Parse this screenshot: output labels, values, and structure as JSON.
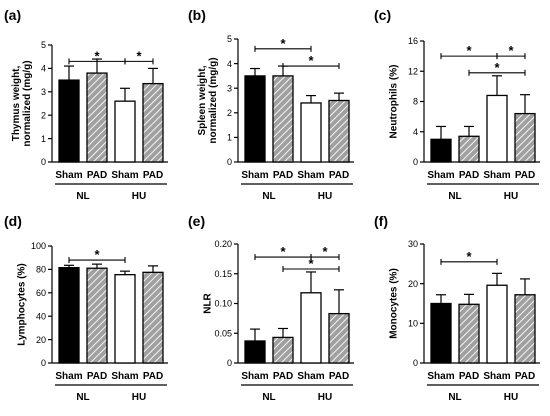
{
  "colors": {
    "ink": "#000000",
    "open": "#ffffff",
    "hatch": "#a0a0a0"
  },
  "chart_data": [
    {
      "panel": "(a)",
      "type": "bar",
      "ylabel": [
        "Thymus weight,",
        "normalized (mg/g)"
      ],
      "ylim": [
        0,
        5
      ],
      "yticks": [
        "0",
        "1",
        "2",
        "3",
        "4",
        "5"
      ],
      "categories": [
        "Sham",
        "PAD",
        "Sham",
        "PAD"
      ],
      "groups": [
        "NL",
        "HU"
      ],
      "series": [
        {
          "values": [
            3.5,
            3.8,
            2.6,
            3.35
          ],
          "errors": [
            0.6,
            0.6,
            0.55,
            0.65
          ]
        }
      ],
      "annotations": [
        {
          "from": 0,
          "to": 2,
          "level": 4.3,
          "text": "*"
        },
        {
          "from": 2,
          "to": 3,
          "level": 4.3,
          "text": "*"
        }
      ]
    },
    {
      "panel": "(b)",
      "type": "bar",
      "ylabel": [
        "Spleen weight,",
        "normalized (mg/g)"
      ],
      "ylim": [
        0,
        5
      ],
      "yticks": [
        "0",
        "1",
        "2",
        "3",
        "4",
        "5"
      ],
      "categories": [
        "Sham",
        "PAD",
        "Sham",
        "PAD"
      ],
      "groups": [
        "NL",
        "HU"
      ],
      "series": [
        {
          "values": [
            3.5,
            3.5,
            2.4,
            2.5
          ],
          "errors": [
            0.3,
            0.4,
            0.3,
            0.3
          ]
        }
      ],
      "annotations": [
        {
          "from": 0,
          "to": 2,
          "level": 4.6,
          "text": "*"
        },
        {
          "from": 1,
          "to": 3,
          "level": 3.9,
          "text": "*"
        }
      ]
    },
    {
      "panel": "(c)",
      "type": "bar",
      "ylabel": [
        "Neutrophils (%)"
      ],
      "ylim": [
        0,
        16
      ],
      "yticks": [
        "0",
        "4",
        "8",
        "12",
        "16"
      ],
      "categories": [
        "Sham",
        "PAD",
        "Sham",
        "PAD"
      ],
      "groups": [
        "NL",
        "HU"
      ],
      "series": [
        {
          "values": [
            3.0,
            3.4,
            8.8,
            6.4
          ],
          "errors": [
            1.7,
            1.3,
            2.6,
            2.5
          ]
        }
      ],
      "annotations": [
        {
          "from": 0,
          "to": 2,
          "level": 14.0,
          "text": "*"
        },
        {
          "from": 2,
          "to": 3,
          "level": 14.0,
          "text": "*"
        },
        {
          "from": 1,
          "to": 3,
          "level": 11.8,
          "text": "*"
        }
      ]
    },
    {
      "panel": "(d)",
      "type": "bar",
      "ylabel": [
        "Lymphocytes (%)"
      ],
      "ylim": [
        0,
        100
      ],
      "yticks": [
        "0",
        "20",
        "40",
        "60",
        "80",
        "100"
      ],
      "categories": [
        "Sham",
        "PAD",
        "Sham",
        "PAD"
      ],
      "groups": [
        "NL",
        "HU"
      ],
      "series": [
        {
          "values": [
            81.5,
            81.0,
            75.5,
            77.5
          ],
          "errors": [
            2.0,
            3.5,
            3.0,
            5.5
          ]
        }
      ],
      "annotations": [
        {
          "from": 0,
          "to": 2,
          "level": 88,
          "text": "*"
        }
      ]
    },
    {
      "panel": "(e)",
      "type": "bar",
      "ylabel": [
        "NLR"
      ],
      "ylim": [
        0,
        0.2
      ],
      "yticks": [
        "0",
        "0.05",
        "0.10",
        "0.15",
        "0.20"
      ],
      "categories": [
        "Sham",
        "PAD",
        "Sham",
        "PAD"
      ],
      "groups": [
        "NL",
        "HU"
      ],
      "series": [
        {
          "values": [
            0.037,
            0.043,
            0.118,
            0.083
          ],
          "errors": [
            0.02,
            0.015,
            0.035,
            0.04
          ]
        }
      ],
      "annotations": [
        {
          "from": 0,
          "to": 2,
          "level": 0.178,
          "text": "*"
        },
        {
          "from": 2,
          "to": 3,
          "level": 0.178,
          "text": "*"
        },
        {
          "from": 1,
          "to": 3,
          "level": 0.158,
          "text": "*"
        }
      ]
    },
    {
      "panel": "(f)",
      "type": "bar",
      "ylabel": [
        "Monocytes (%)"
      ],
      "ylim": [
        0,
        30
      ],
      "yticks": [
        "0",
        "10",
        "20",
        "30"
      ],
      "categories": [
        "Sham",
        "PAD",
        "Sham",
        "PAD"
      ],
      "groups": [
        "NL",
        "HU"
      ],
      "series": [
        {
          "values": [
            15.0,
            14.8,
            19.6,
            17.2
          ],
          "errors": [
            2.2,
            2.5,
            3.0,
            4.0
          ]
        }
      ],
      "annotations": [
        {
          "from": 0,
          "to": 2,
          "level": 25.5,
          "text": "*"
        }
      ]
    }
  ]
}
